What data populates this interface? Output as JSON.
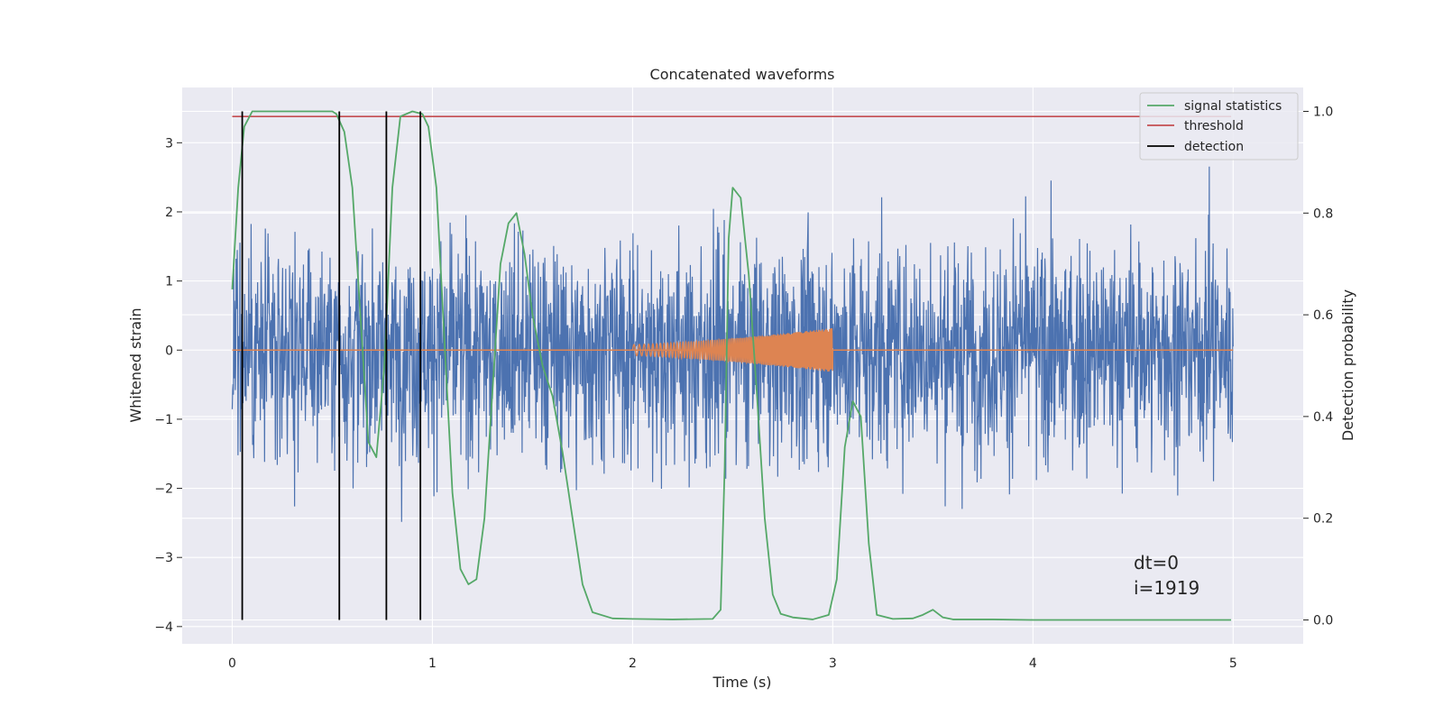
{
  "chart_data": {
    "type": "line",
    "title": "Concatenated waveforms",
    "xlabel": "Time (s)",
    "ylabel": "Whitened strain",
    "y2label": "Detection probability",
    "xlim": [
      -0.25,
      5.35
    ],
    "ylim": [
      -4.25,
      3.8
    ],
    "y2lim": [
      -0.047,
      1.047
    ],
    "xticks": [
      0,
      1,
      2,
      3,
      4,
      5
    ],
    "yticks": [
      -4,
      -3,
      -2,
      -1,
      0,
      1,
      2,
      3
    ],
    "y2ticks": [
      0.0,
      0.2,
      0.4,
      0.6,
      0.8,
      1.0
    ],
    "grid": true,
    "legend_position": "top-right",
    "colors": {
      "background": "#eaeaf2",
      "grid": "#ffffff",
      "strain": "#4c72b0",
      "injection": "#dd8452",
      "signal_statistics": "#55a868",
      "threshold": "#c44e52",
      "detection": "#000000"
    },
    "series": [
      {
        "name": "signal statistics",
        "axis": "right",
        "x": [
          0.0,
          0.03,
          0.06,
          0.1,
          0.2,
          0.3,
          0.4,
          0.5,
          0.52,
          0.56,
          0.6,
          0.64,
          0.68,
          0.72,
          0.76,
          0.8,
          0.84,
          0.9,
          0.95,
          0.98,
          1.02,
          1.06,
          1.1,
          1.14,
          1.18,
          1.22,
          1.26,
          1.3,
          1.34,
          1.38,
          1.42,
          1.46,
          1.5,
          1.55,
          1.6,
          1.65,
          1.7,
          1.75,
          1.8,
          1.9,
          2.0,
          2.2,
          2.4,
          2.44,
          2.46,
          2.48,
          2.5,
          2.54,
          2.58,
          2.62,
          2.66,
          2.7,
          2.74,
          2.8,
          2.9,
          2.98,
          3.02,
          3.06,
          3.1,
          3.14,
          3.18,
          3.22,
          3.3,
          3.4,
          3.45,
          3.5,
          3.55,
          3.6,
          3.8,
          4.0,
          4.5,
          4.99
        ],
        "values": [
          0.65,
          0.85,
          0.97,
          1.0,
          1.0,
          1.0,
          1.0,
          1.0,
          0.995,
          0.96,
          0.85,
          0.6,
          0.35,
          0.32,
          0.5,
          0.85,
          0.99,
          1.0,
          0.995,
          0.97,
          0.85,
          0.55,
          0.25,
          0.1,
          0.07,
          0.08,
          0.2,
          0.45,
          0.7,
          0.78,
          0.8,
          0.72,
          0.6,
          0.5,
          0.44,
          0.33,
          0.2,
          0.07,
          0.015,
          0.003,
          0.002,
          0.001,
          0.002,
          0.02,
          0.3,
          0.75,
          0.85,
          0.83,
          0.68,
          0.45,
          0.2,
          0.05,
          0.012,
          0.005,
          0.001,
          0.01,
          0.08,
          0.34,
          0.43,
          0.4,
          0.15,
          0.01,
          0.002,
          0.003,
          0.01,
          0.02,
          0.005,
          0.001,
          0.001,
          0.0,
          0.0,
          0.0
        ]
      },
      {
        "name": "threshold",
        "axis": "right",
        "x": [
          0.0,
          4.99
        ],
        "values": [
          0.99,
          0.99
        ]
      }
    ],
    "detection_times": [
      0.05,
      0.535,
      0.77,
      0.94
    ],
    "injection": {
      "x_start": 2.0,
      "x_end": 3.0,
      "amp_start": 0.08,
      "amp_end": 0.32
    },
    "strain": {
      "x_start": 0.0,
      "x_end": 5.0,
      "typical_range": [
        -2.5,
        2.6
      ],
      "extremes": [
        -3.9,
        3.45
      ]
    }
  },
  "legend": {
    "items": [
      {
        "label": "signal statistics",
        "color": "#55a868"
      },
      {
        "label": "threshold",
        "color": "#c44e52"
      },
      {
        "label": "detection",
        "color": "#000000"
      }
    ]
  },
  "annotations": {
    "dt": "dt=0",
    "i": "i=1919"
  }
}
